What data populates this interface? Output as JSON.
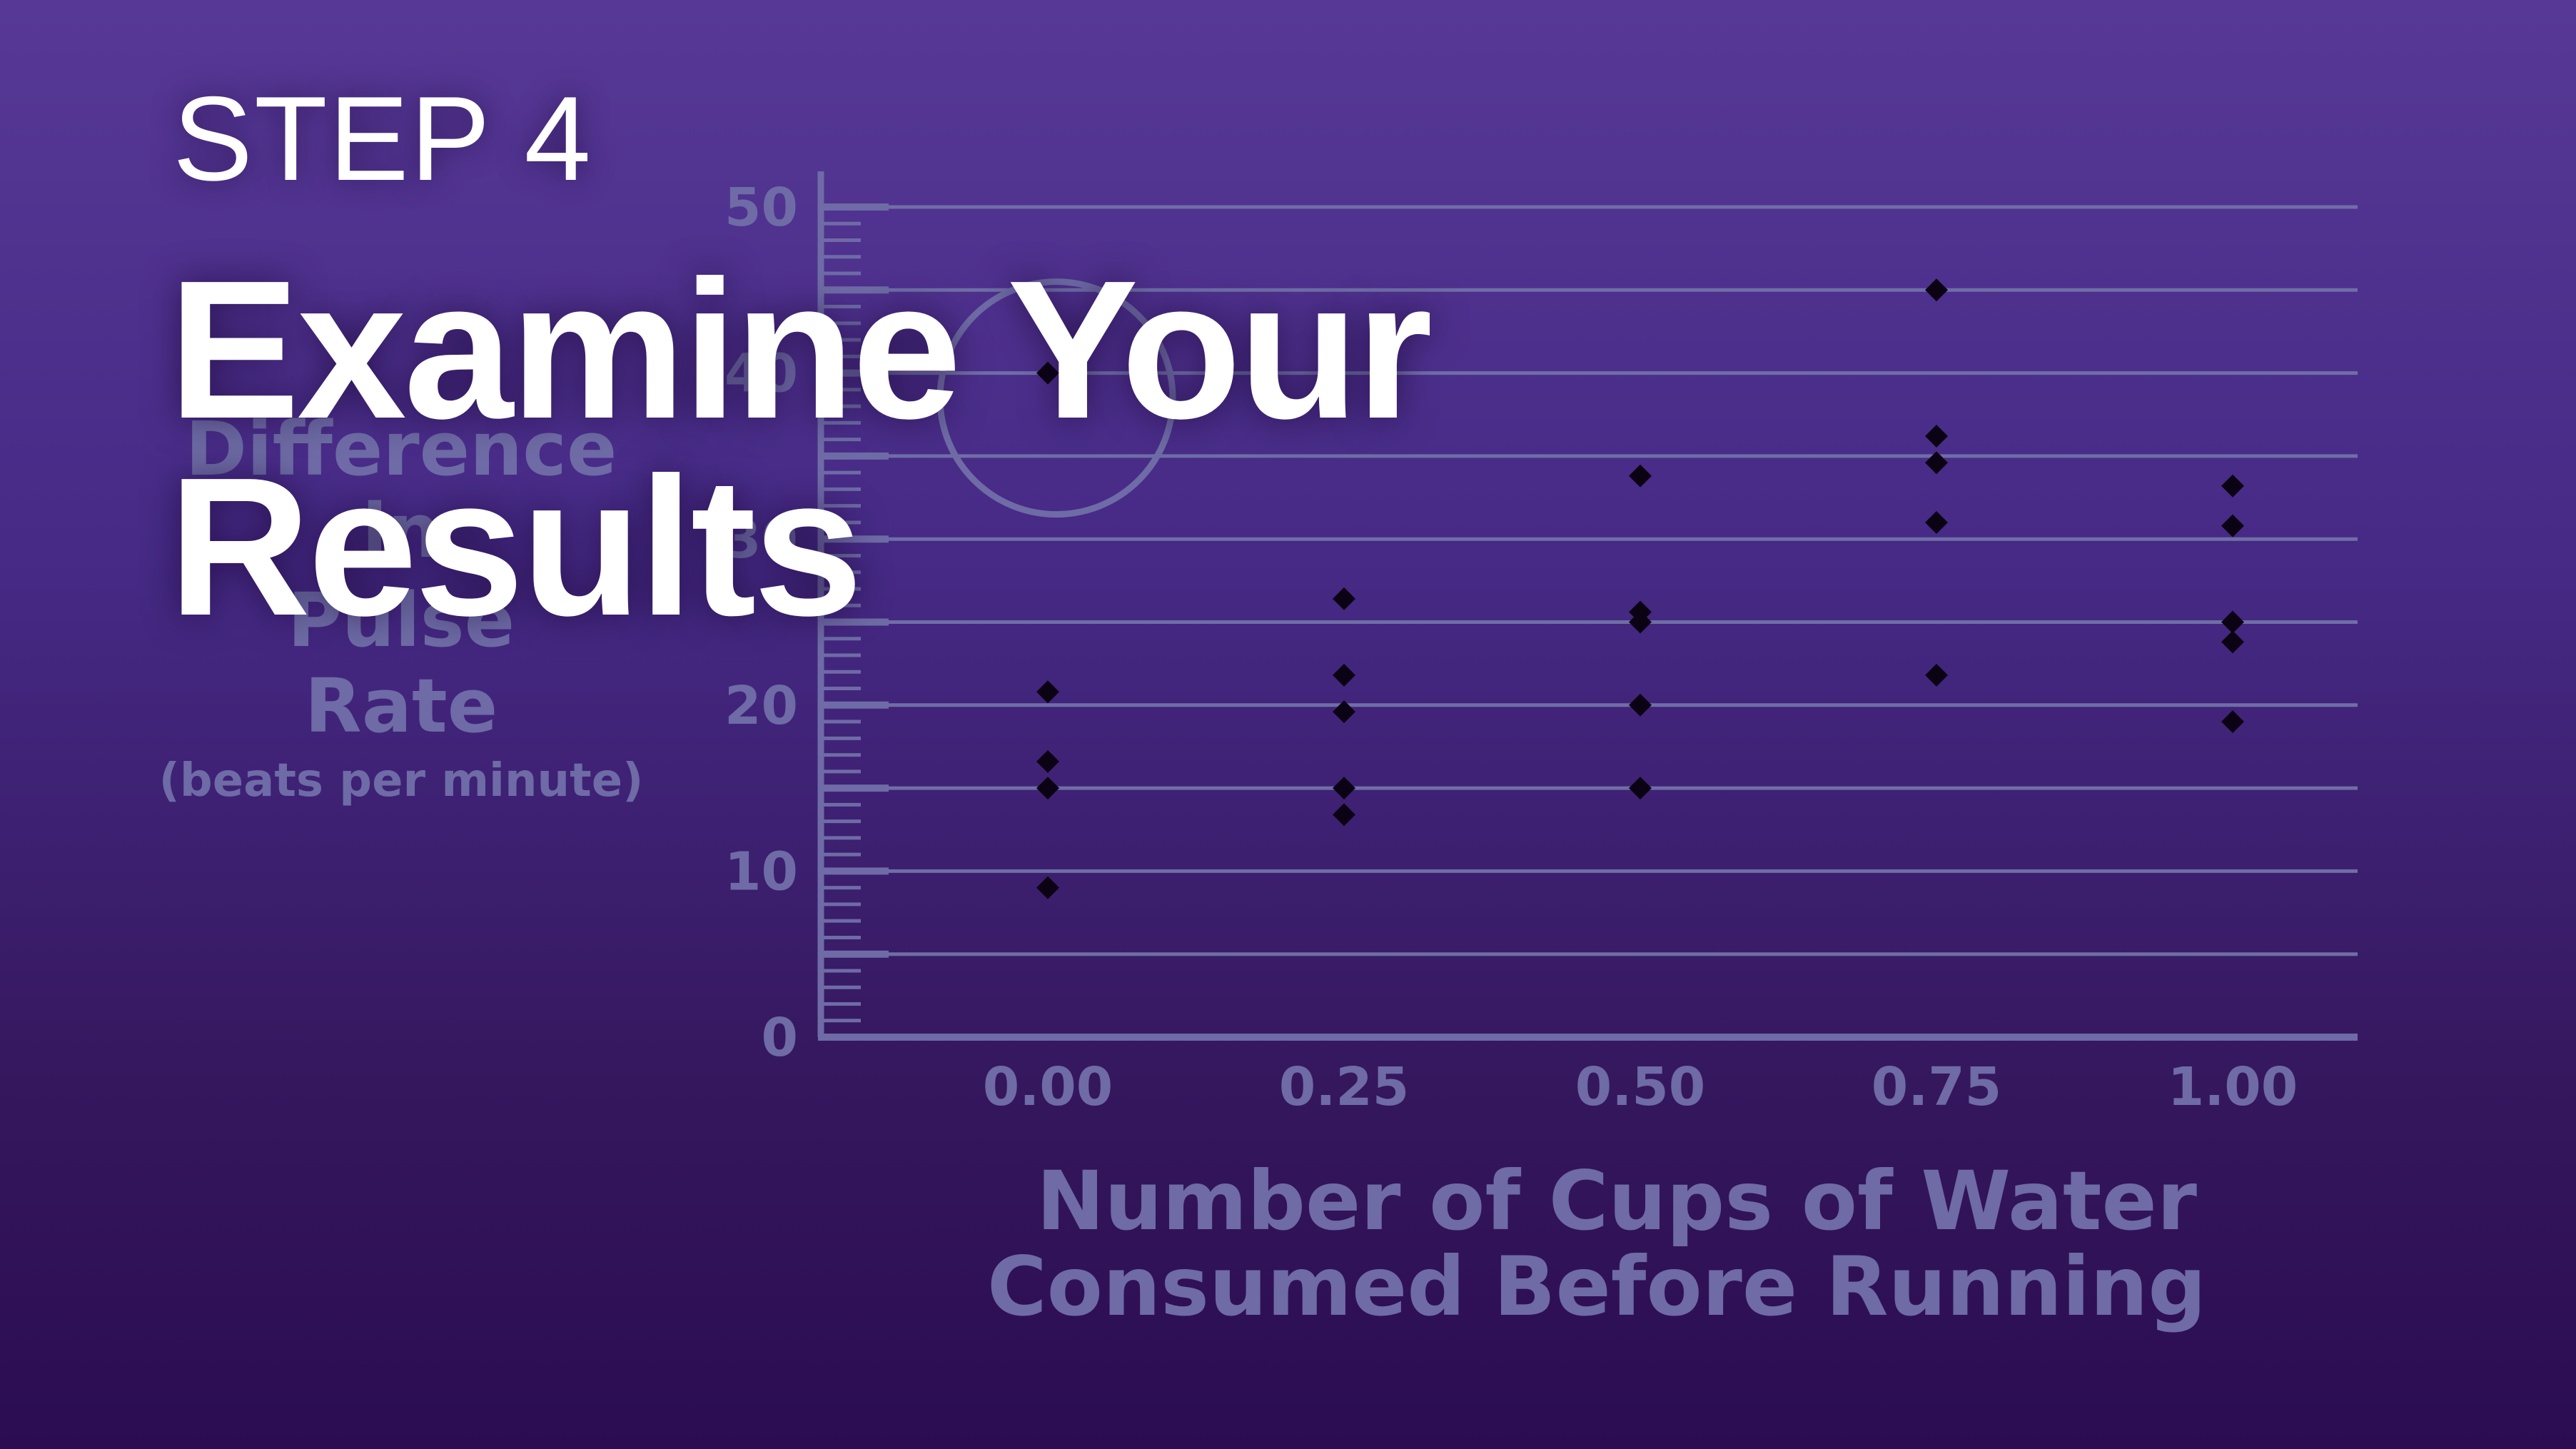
{
  "slide": {
    "step_label": "STEP 4",
    "title_line1": "Examine Your",
    "title_line2": "Results"
  },
  "chart_data": {
    "type": "scatter",
    "ylabel_lines": [
      "Difference",
      "in",
      "Pulse",
      "Rate"
    ],
    "ylabel_units": "(beats per minute)",
    "xlabel_lines": [
      "Number of Cups of Water",
      "Consumed Before Running"
    ],
    "ylim": [
      0,
      50
    ],
    "yticks": [
      0,
      10,
      20,
      30,
      40,
      50
    ],
    "ytick_labels": [
      "0",
      "10",
      "20",
      "30",
      "40",
      "50"
    ],
    "xticks": [
      0,
      0.25,
      0.5,
      0.75,
      1.0
    ],
    "xtick_labels": [
      "0.00",
      "0.25",
      "0.50",
      "0.75",
      "1.00"
    ],
    "grid": "horizontal every 5",
    "annotation": "circled point at x=0.00, y≈40",
    "points": [
      {
        "x": 0.0,
        "y": 40.0
      },
      {
        "x": 0.0,
        "y": 20.8
      },
      {
        "x": 0.0,
        "y": 16.6
      },
      {
        "x": 0.0,
        "y": 15.0
      },
      {
        "x": 0.0,
        "y": 9.0
      },
      {
        "x": 0.25,
        "y": 26.4
      },
      {
        "x": 0.25,
        "y": 21.8
      },
      {
        "x": 0.25,
        "y": 19.6
      },
      {
        "x": 0.25,
        "y": 15.0
      },
      {
        "x": 0.25,
        "y": 13.4
      },
      {
        "x": 0.5,
        "y": 33.8
      },
      {
        "x": 0.5,
        "y": 25.6
      },
      {
        "x": 0.5,
        "y": 25.0
      },
      {
        "x": 0.5,
        "y": 20.0
      },
      {
        "x": 0.5,
        "y": 15.0
      },
      {
        "x": 0.75,
        "y": 45.0
      },
      {
        "x": 0.75,
        "y": 36.2
      },
      {
        "x": 0.75,
        "y": 34.6
      },
      {
        "x": 0.75,
        "y": 31.0
      },
      {
        "x": 0.75,
        "y": 21.8
      },
      {
        "x": 1.0,
        "y": 33.2
      },
      {
        "x": 1.0,
        "y": 30.8
      },
      {
        "x": 1.0,
        "y": 25.0
      },
      {
        "x": 1.0,
        "y": 23.8
      },
      {
        "x": 1.0,
        "y": 19.0
      }
    ],
    "colors": {
      "axis": "#6e6ba6",
      "grid": "#6f6ea6",
      "point": "#0b0313",
      "title": "#ffffff"
    }
  }
}
